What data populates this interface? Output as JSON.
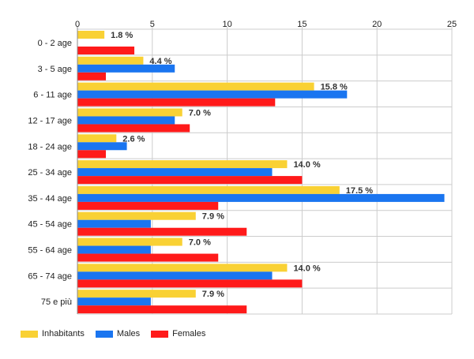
{
  "chart_data": {
    "type": "bar",
    "orientation": "horizontal",
    "categories": [
      "0 - 2 age",
      "3 - 5 age",
      "6 - 11 age",
      "12 - 17 age",
      "18 - 24 age",
      "25 - 34 age",
      "35 - 44 age",
      "45 - 54 age",
      "55 - 64 age",
      "65 - 74 age",
      "75 e più"
    ],
    "series": [
      {
        "name": "Inhabitants",
        "color": "#f9d134",
        "values": [
          1.8,
          4.4,
          15.8,
          7.0,
          2.6,
          14.0,
          17.5,
          7.9,
          7.0,
          14.0,
          7.9
        ],
        "labels": [
          "1.8 %",
          "4.4 %",
          "15.8 %",
          "7.0 %",
          "2.6 %",
          "14.0 %",
          "17.5 %",
          "7.9 %",
          "7.0 %",
          "14.0 %",
          "7.9 %"
        ]
      },
      {
        "name": "Males",
        "color": "#1a75f0",
        "values": [
          0,
          6.5,
          18.0,
          6.5,
          3.3,
          13.0,
          24.5,
          4.9,
          4.9,
          13.0,
          4.9
        ]
      },
      {
        "name": "Females",
        "color": "#ff1a1a",
        "values": [
          3.8,
          1.9,
          13.2,
          7.5,
          1.9,
          15.0,
          9.4,
          11.3,
          9.4,
          15.0,
          11.3
        ]
      }
    ],
    "xlim": [
      0,
      25
    ],
    "xticks": [
      "0",
      "5",
      "10",
      "15",
      "20",
      "25"
    ],
    "xtick_values": [
      0,
      5,
      10,
      15,
      20,
      25
    ],
    "grid": true,
    "legend_position": "bottom-left"
  }
}
